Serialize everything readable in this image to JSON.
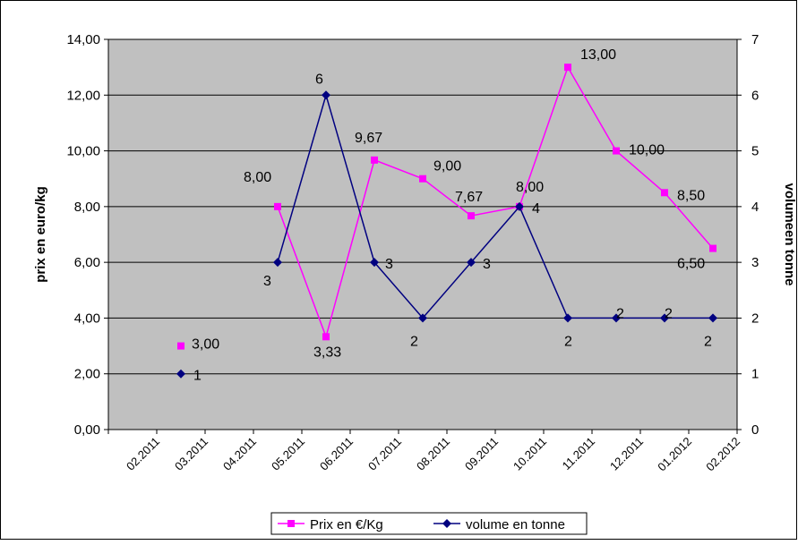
{
  "chart_data": {
    "type": "line",
    "categories": [
      "02.2011",
      "03.2011",
      "04.2011",
      "05.2011",
      "06.2011",
      "07.2011",
      "08.2011",
      "09.2011",
      "10.2011",
      "11.2011",
      "12.2011",
      "01.2012",
      "02.2012"
    ],
    "y_left": {
      "label": "prix en euro/kg",
      "range": [
        0,
        14
      ],
      "ticks": [
        "0,00",
        "2,00",
        "4,00",
        "6,00",
        "8,00",
        "10,00",
        "12,00",
        "14,00"
      ]
    },
    "y_right": {
      "label": "volumeen tonne",
      "range": [
        0,
        7
      ],
      "ticks": [
        "0",
        "1",
        "2",
        "3",
        "4",
        "5",
        "6",
        "7"
      ]
    },
    "grid": true,
    "legend_position": "bottom",
    "series": [
      {
        "name": "Prix en €/Kg",
        "axis": "left",
        "color": "#ff00ff",
        "marker": "square",
        "x": [
          1.5,
          3.5,
          4.5,
          5.5,
          6.5,
          7.5,
          8.5,
          9.5,
          10.5,
          11.5,
          12.5
        ],
        "values": [
          3.0,
          8.0,
          3.33,
          9.67,
          9.0,
          7.67,
          8.0,
          13.0,
          10.0,
          8.5,
          6.5
        ],
        "labels": [
          "3,00",
          "8,00",
          "3,33",
          "9,67",
          "9,00",
          "7,67",
          "8,00",
          "13,00",
          "10,00",
          "8,50",
          "6,50"
        ],
        "label_offsets": [
          [
            12,
            3
          ],
          [
            -38,
            -28
          ],
          [
            -14,
            22
          ],
          [
            -22,
            -20
          ],
          [
            12,
            -9
          ],
          [
            -18,
            -16
          ],
          [
            -4,
            -17
          ],
          [
            14,
            -9
          ],
          [
            14,
            4
          ],
          [
            14,
            8
          ],
          [
            -40,
            22
          ]
        ]
      },
      {
        "name": "volume en tonne",
        "axis": "right",
        "color": "#000080",
        "marker": "diamond",
        "x": [
          1.5,
          3.5,
          4.5,
          5.5,
          6.5,
          7.5,
          8.5,
          9.5,
          10.5,
          11.5,
          12.5
        ],
        "values": [
          1,
          3,
          6,
          3,
          2,
          3,
          4,
          2,
          2,
          2,
          2
        ],
        "labels": [
          "1",
          "3",
          "6",
          "3",
          "2",
          "3",
          "4",
          "2",
          "2",
          "2",
          ""
        ],
        "label_offsets": [
          [
            14,
            7
          ],
          [
            -16,
            26
          ],
          [
            -12,
            -13
          ],
          [
            12,
            7
          ],
          [
            -14,
            31
          ],
          [
            13,
            7
          ],
          [
            14,
            7
          ],
          [
            -4,
            31
          ],
          [
            0,
            0
          ],
          [
            0,
            0
          ],
          [
            -10,
            31
          ]
        ],
        "label_overrides": {
          "10": "2"
        }
      }
    ]
  },
  "colors": {
    "plot_background": "#c0c0c0",
    "grid": "#000000"
  }
}
